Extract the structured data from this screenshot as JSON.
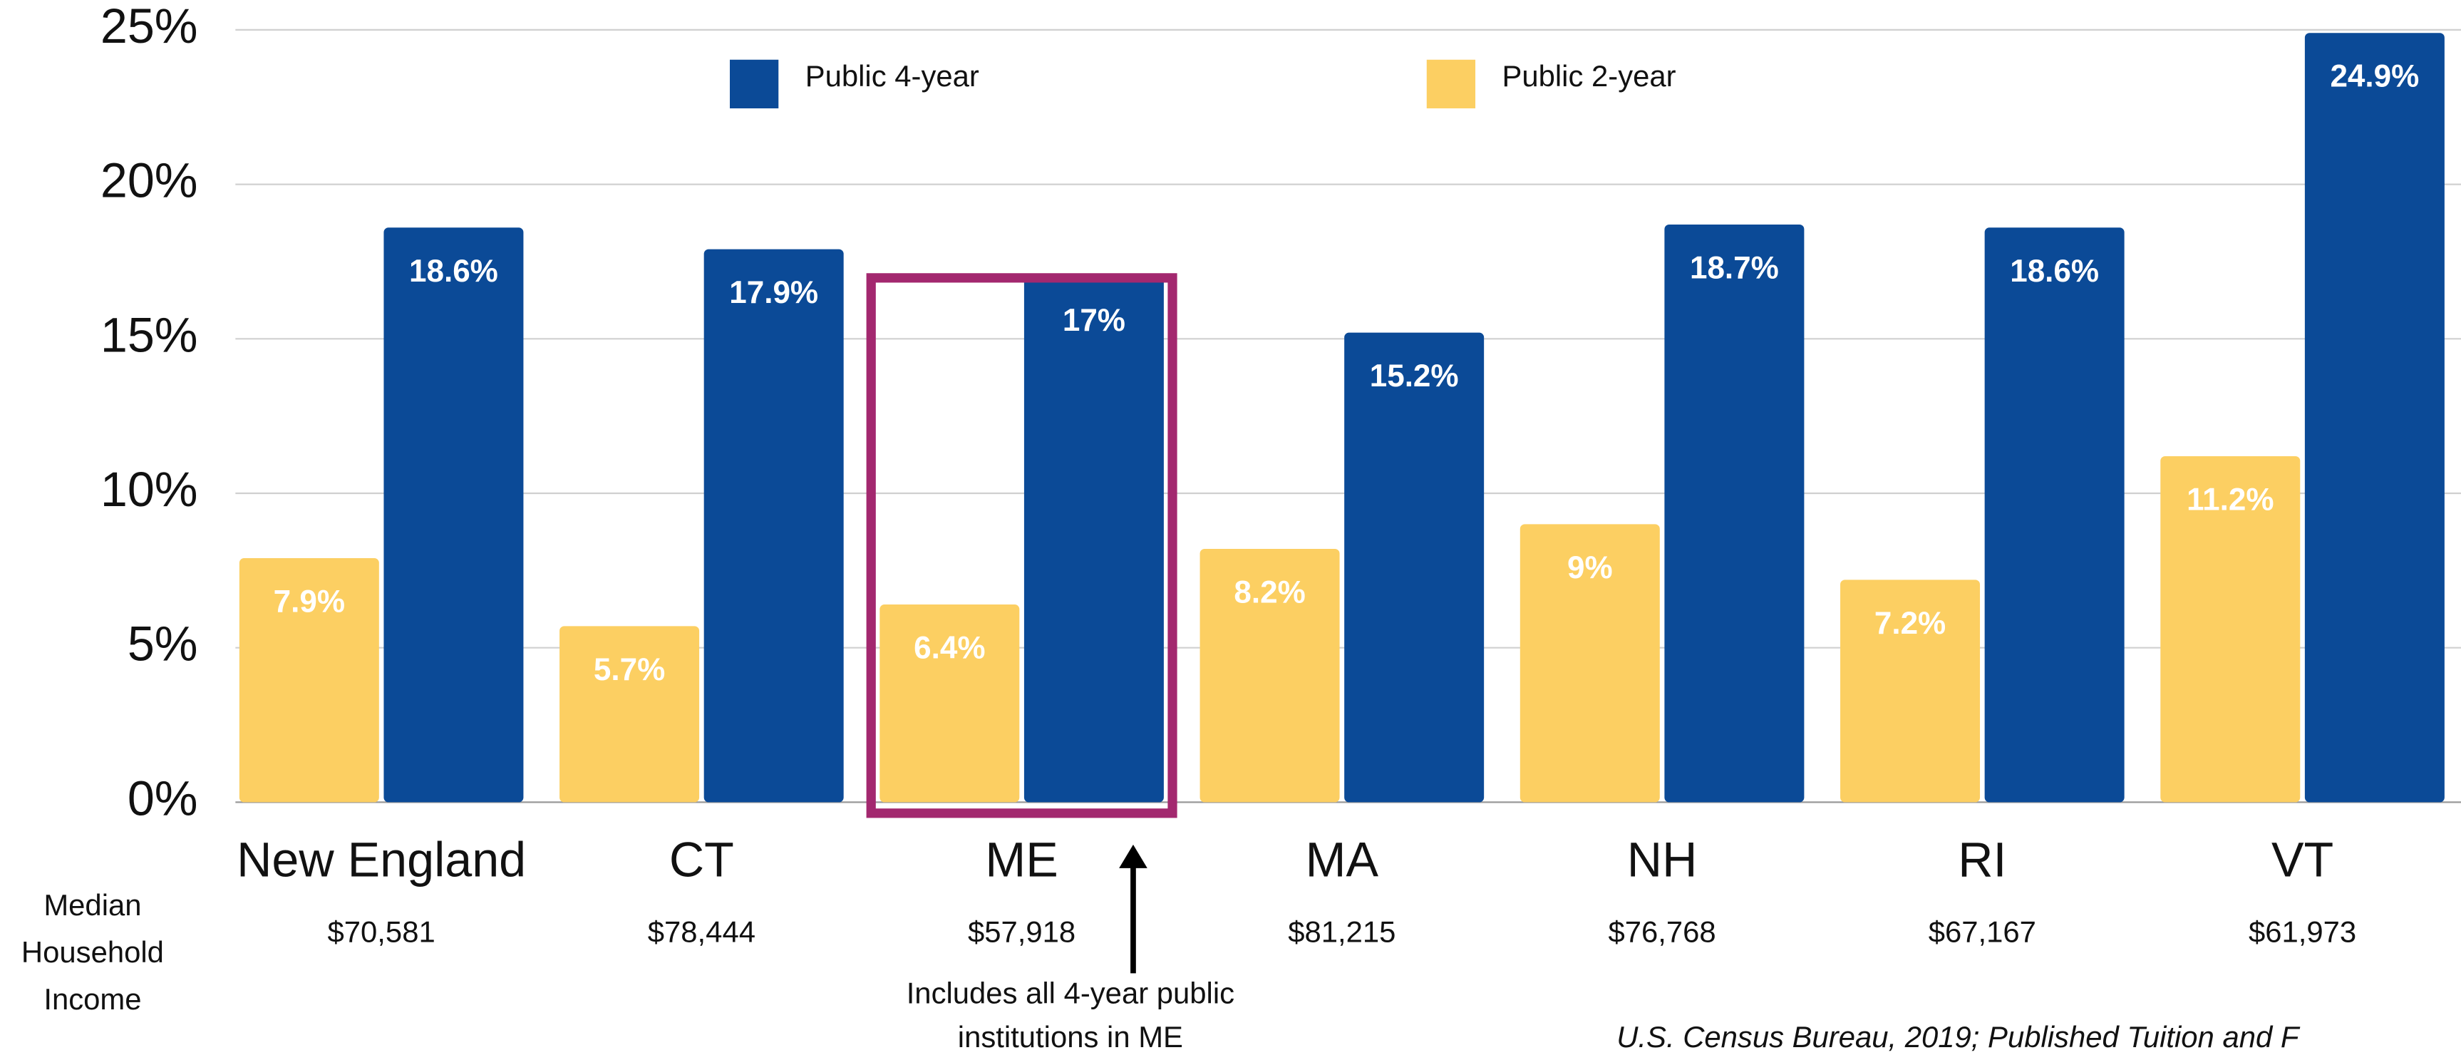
{
  "chart_data": {
    "type": "bar",
    "categories": [
      "New England",
      "CT",
      "ME",
      "MA",
      "NH",
      "RI",
      "VT"
    ],
    "income_labels": [
      "$70,581",
      "$78,444",
      "$57,918",
      "$81,215",
      "$76,768",
      "$67,167",
      "$61,973"
    ],
    "income_axis_label": [
      "Median",
      "Household",
      "Income"
    ],
    "series": [
      {
        "name": "Public 2-year",
        "color": "#fccf62",
        "values": [
          7.9,
          5.7,
          6.4,
          8.2,
          9,
          7.2,
          11.2
        ],
        "value_labels": [
          "7.9%",
          "5.7%",
          "6.4%",
          "8.2%",
          "9%",
          "7.2%",
          "11.2%"
        ]
      },
      {
        "name": "Public 4-year",
        "color": "#0b4a97",
        "values": [
          18.6,
          17.9,
          17,
          15.2,
          18.7,
          18.6,
          24.9
        ],
        "value_labels": [
          "18.6%",
          "17.9%",
          "17%",
          "15.2%",
          "18.7%",
          "18.6%",
          "24.9%"
        ]
      }
    ],
    "ylim": [
      0,
      25
    ],
    "yticks": [
      {
        "value": 0,
        "label": "0%"
      },
      {
        "value": 5,
        "label": "5%"
      },
      {
        "value": 10,
        "label": "10%"
      },
      {
        "value": 15,
        "label": "15%"
      },
      {
        "value": 20,
        "label": "20%"
      },
      {
        "value": 25,
        "label": "25%"
      }
    ],
    "grid": true,
    "annotation": [
      "Includes all 4-year public",
      "institutions in ME"
    ],
    "source": "U.S. Census Bureau, 2019; Published Tuition and F"
  }
}
